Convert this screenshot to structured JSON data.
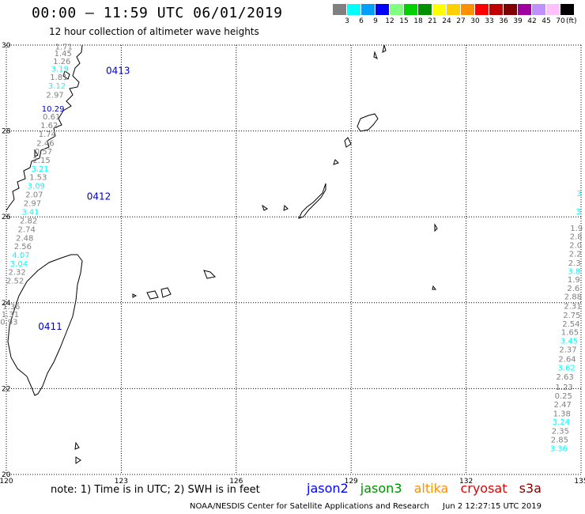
{
  "title": "00:00 – 11:59 UTC 06/01/2019",
  "subtitle": "12 hour collection of altimeter wave heights",
  "scale": {
    "unit": "(ft)",
    "swatches": [
      {
        "label": "3",
        "color": "#808080"
      },
      {
        "label": "6",
        "color": "#00ffff"
      },
      {
        "label": "9",
        "color": "#00a0ff"
      },
      {
        "label": "12",
        "color": "#0000ff"
      },
      {
        "label": "15",
        "color": "#80ff80"
      },
      {
        "label": "18",
        "color": "#00d000"
      },
      {
        "label": "21",
        "color": "#009000"
      },
      {
        "label": "24",
        "color": "#ffff00"
      },
      {
        "label": "27",
        "color": "#ffd000"
      },
      {
        "label": "30",
        "color": "#ff9000"
      },
      {
        "label": "33",
        "color": "#ff0000"
      },
      {
        "label": "36",
        "color": "#c00000"
      },
      {
        "label": "39",
        "color": "#800000"
      },
      {
        "label": "42",
        "color": "#a000a0"
      },
      {
        "label": "45",
        "color": "#c090ff"
      },
      {
        "label": "70",
        "color": "#ffc0ff"
      },
      {
        "label": "",
        "color": "#000000"
      }
    ]
  },
  "colors": {
    "gray": "#808080",
    "cyan": "#00ffff",
    "blue": "#0000c0"
  },
  "axes": {
    "lon": [
      "120",
      "123",
      "126",
      "129",
      "132",
      "135"
    ],
    "lat": [
      "30",
      "28",
      "26",
      "24",
      "22",
      "20"
    ]
  },
  "tracks": [
    {
      "points": [
        {
          "lon": 121.5,
          "lat": 29.97,
          "v": "1.71",
          "c": "gray"
        },
        {
          "lon": 121.48,
          "lat": 29.82,
          "v": "1.45",
          "c": "gray"
        },
        {
          "lon": 121.45,
          "lat": 29.63,
          "v": "1.26",
          "c": "gray"
        },
        {
          "lon": 121.4,
          "lat": 29.46,
          "v": "3.19",
          "c": "cyan"
        },
        {
          "lon": 121.37,
          "lat": 29.26,
          "v": "1.81",
          "c": "gray"
        },
        {
          "lon": 121.32,
          "lat": 29.06,
          "v": "3.12",
          "c": "cyan"
        },
        {
          "lon": 121.27,
          "lat": 28.85,
          "v": "2.97",
          "c": "gray"
        },
        {
          "lon": 121.22,
          "lat": 28.53,
          "v": "10.29",
          "c": "blue"
        },
        {
          "lon": 121.18,
          "lat": 28.34,
          "v": "0.61",
          "c": "gray"
        },
        {
          "lon": 121.12,
          "lat": 28.14,
          "v": "1.62",
          "c": "gray"
        },
        {
          "lon": 121.07,
          "lat": 27.94,
          "v": "1.74",
          "c": "gray"
        },
        {
          "lon": 121.02,
          "lat": 27.73,
          "v": "2.46",
          "c": "gray"
        },
        {
          "lon": 120.97,
          "lat": 27.53,
          "v": "0.57",
          "c": "gray"
        },
        {
          "lon": 120.92,
          "lat": 27.33,
          "v": "2.15",
          "c": "gray"
        },
        {
          "lon": 120.88,
          "lat": 27.13,
          "v": "3.21",
          "c": "cyan"
        },
        {
          "lon": 120.83,
          "lat": 26.93,
          "v": "1.53",
          "c": "gray"
        },
        {
          "lon": 120.78,
          "lat": 26.73,
          "v": "3.09",
          "c": "cyan"
        },
        {
          "lon": 120.73,
          "lat": 26.53,
          "v": "2.07",
          "c": "gray"
        },
        {
          "lon": 120.68,
          "lat": 26.33,
          "v": "2.97",
          "c": "gray"
        },
        {
          "lon": 120.63,
          "lat": 26.12,
          "v": "3.41",
          "c": "cyan"
        },
        {
          "lon": 120.58,
          "lat": 25.92,
          "v": "2.82",
          "c": "gray"
        },
        {
          "lon": 120.53,
          "lat": 25.72,
          "v": "2.74",
          "c": "gray"
        },
        {
          "lon": 120.48,
          "lat": 25.52,
          "v": "2.48",
          "c": "gray"
        },
        {
          "lon": 120.43,
          "lat": 25.32,
          "v": "2.56",
          "c": "gray"
        },
        {
          "lon": 120.38,
          "lat": 25.12,
          "v": "4.07",
          "c": "cyan"
        },
        {
          "lon": 120.33,
          "lat": 24.92,
          "v": "3.04",
          "c": "cyan"
        },
        {
          "lon": 120.28,
          "lat": 24.72,
          "v": "2.32",
          "c": "gray"
        },
        {
          "lon": 120.23,
          "lat": 24.52,
          "v": "2.52",
          "c": "gray"
        },
        {
          "lon": 120.13,
          "lat": 23.92,
          "v": "1.36",
          "c": "gray"
        },
        {
          "lon": 120.1,
          "lat": 23.74,
          "v": "1.31",
          "c": "gray"
        },
        {
          "lon": 120.07,
          "lat": 23.56,
          "v": "0.93",
          "c": "gray"
        }
      ]
    },
    {
      "points": [
        {
          "lon": 134.95,
          "lat": 26.56,
          "v": "3",
          "c": "cyan"
        },
        {
          "lon": 134.93,
          "lat": 26.13,
          "v": "3",
          "c": "cyan"
        },
        {
          "lon": 134.88,
          "lat": 25.75,
          "v": "1.9",
          "c": "gray"
        },
        {
          "lon": 134.87,
          "lat": 25.55,
          "v": "2.8",
          "c": "gray"
        },
        {
          "lon": 134.86,
          "lat": 25.35,
          "v": "2.0",
          "c": "gray"
        },
        {
          "lon": 134.85,
          "lat": 25.15,
          "v": "2.2",
          "c": "gray"
        },
        {
          "lon": 134.83,
          "lat": 24.94,
          "v": "2.3",
          "c": "gray"
        },
        {
          "lon": 134.82,
          "lat": 24.74,
          "v": "3.8",
          "c": "cyan"
        },
        {
          "lon": 134.81,
          "lat": 24.55,
          "v": "1.9",
          "c": "gray"
        },
        {
          "lon": 134.8,
          "lat": 24.35,
          "v": "2.6",
          "c": "gray"
        },
        {
          "lon": 134.79,
          "lat": 24.15,
          "v": "2.88",
          "c": "gray"
        },
        {
          "lon": 134.78,
          "lat": 23.93,
          "v": "2.31",
          "c": "gray"
        },
        {
          "lon": 134.76,
          "lat": 23.72,
          "v": "2.75",
          "c": "gray"
        },
        {
          "lon": 134.74,
          "lat": 23.52,
          "v": "2.54",
          "c": "gray"
        },
        {
          "lon": 134.71,
          "lat": 23.32,
          "v": "1.65",
          "c": "gray"
        },
        {
          "lon": 134.69,
          "lat": 23.12,
          "v": "3.45",
          "c": "cyan"
        },
        {
          "lon": 134.66,
          "lat": 22.92,
          "v": "2.37",
          "c": "gray"
        },
        {
          "lon": 134.64,
          "lat": 22.7,
          "v": "2.64",
          "c": "gray"
        },
        {
          "lon": 134.62,
          "lat": 22.5,
          "v": "3.62",
          "c": "cyan"
        },
        {
          "lon": 134.58,
          "lat": 22.28,
          "v": "2.63",
          "c": "gray"
        },
        {
          "lon": 134.56,
          "lat": 22.04,
          "v": "1.23",
          "c": "gray"
        },
        {
          "lon": 134.54,
          "lat": 21.84,
          "v": "0.25",
          "c": "gray"
        },
        {
          "lon": 134.52,
          "lat": 21.64,
          "v": "2.47",
          "c": "gray"
        },
        {
          "lon": 134.5,
          "lat": 21.43,
          "v": "1.38",
          "c": "gray"
        },
        {
          "lon": 134.48,
          "lat": 21.23,
          "v": "3.24",
          "c": "cyan"
        },
        {
          "lon": 134.46,
          "lat": 21.02,
          "v": "2.35",
          "c": "gray"
        },
        {
          "lon": 134.44,
          "lat": 20.82,
          "v": "2.85",
          "c": "gray"
        },
        {
          "lon": 134.42,
          "lat": 20.62,
          "v": "3.36",
          "c": "cyan"
        }
      ]
    }
  ],
  "pass_labels": [
    {
      "text": "0413",
      "lon": 122.6,
      "lat": 29.4
    },
    {
      "text": "0412",
      "lon": 122.1,
      "lat": 26.47
    },
    {
      "text": "0411",
      "lon": 120.83,
      "lat": 23.44
    }
  ],
  "note": "note:  1) Time is in UTC;  2) SWH is in feet",
  "legend": [
    {
      "text": "jason2",
      "color": "#0000ff"
    },
    {
      "text": "jason3",
      "color": "#009000"
    },
    {
      "text": "altika",
      "color": "#ff9000"
    },
    {
      "text": "cryosat",
      "color": "#e00000"
    },
    {
      "text": "s3a",
      "color": "#800000"
    }
  ],
  "credit": {
    "org": "NOAA/NESDIS Center for Satellite Applications and Research",
    "generated": "Jun  2 12:27:15 UTC 2019"
  }
}
